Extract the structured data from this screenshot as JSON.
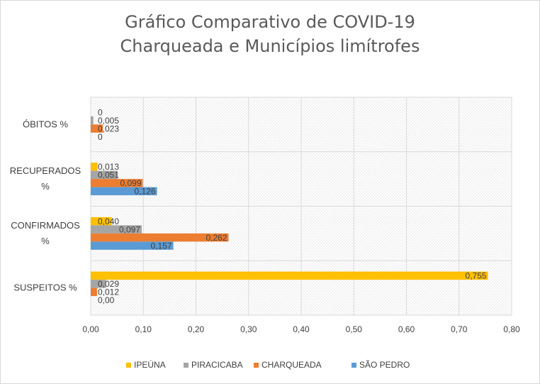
{
  "chart_data": {
    "type": "bar",
    "orientation": "horizontal",
    "title_lines": [
      "Gráfico Comparativo de COVID-19",
      "Charqueada e Municípios limítrofes"
    ],
    "categories": [
      {
        "key": "suspeitos",
        "label_lines": [
          "SUSPEITOS %"
        ]
      },
      {
        "key": "confirmados",
        "label_lines": [
          "CONFIRMADOS",
          "%"
        ]
      },
      {
        "key": "recuperados",
        "label_lines": [
          "RECUPERADOS",
          "%"
        ]
      },
      {
        "key": "obitos",
        "label_lines": [
          "ÓBITOS  %"
        ]
      }
    ],
    "series": [
      {
        "name": "IPEÚNA",
        "color": "#ffc000",
        "values": [
          0.755,
          0.04,
          0.013,
          0
        ],
        "labels": [
          "0,755",
          "0,040",
          "0,013",
          "0"
        ]
      },
      {
        "name": "PIRACICABA",
        "color": "#a5a5a5",
        "values": [
          0.029,
          0.097,
          0.051,
          0.005
        ],
        "labels": [
          "0,029",
          "0,097",
          "0,051",
          "0,005"
        ]
      },
      {
        "name": "CHARQUEADA",
        "color": "#ed7d31",
        "values": [
          0.012,
          0.262,
          0.099,
          0.023
        ],
        "labels": [
          "0,012",
          "0,262",
          "0,099",
          "0,023"
        ]
      },
      {
        "name": "SÃO PEDRO",
        "color": "#5b9bd5",
        "values": [
          0.0,
          0.157,
          0.126,
          0
        ],
        "labels": [
          "0,00",
          "0,157",
          "0,126",
          "0"
        ]
      }
    ],
    "xlim": [
      0,
      0.8
    ],
    "xticks": [
      0,
      0.1,
      0.2,
      0.3,
      0.4,
      0.5,
      0.6,
      0.7,
      0.8
    ],
    "xtick_labels": [
      "0,00",
      "0,10",
      "0,20",
      "0,30",
      "0,40",
      "0,50",
      "0,60",
      "0,70",
      "0,80"
    ],
    "grid": true,
    "legend_position": "bottom"
  }
}
